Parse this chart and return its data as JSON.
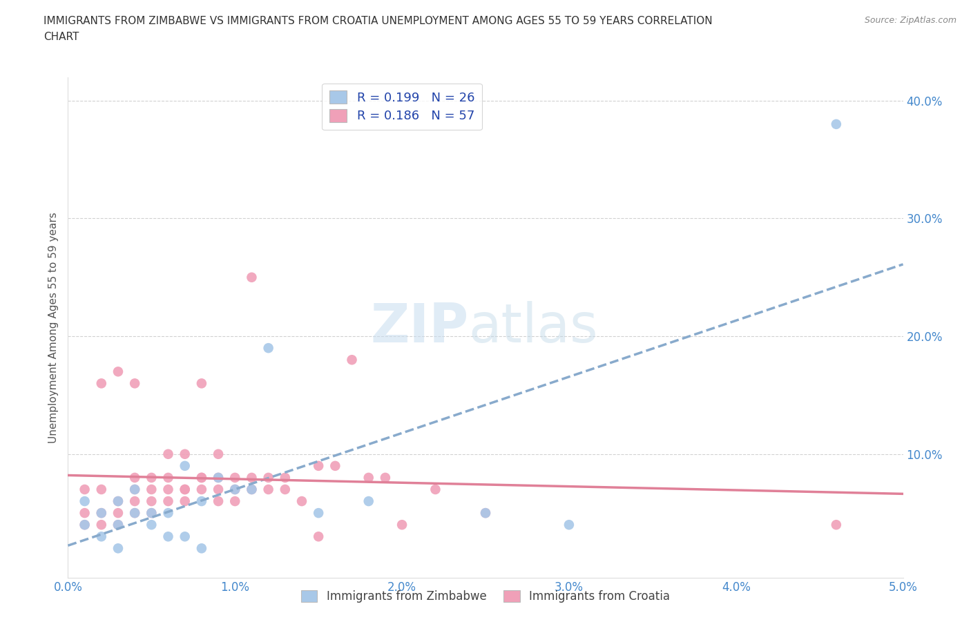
{
  "title_line1": "IMMIGRANTS FROM ZIMBABWE VS IMMIGRANTS FROM CROATIA UNEMPLOYMENT AMONG AGES 55 TO 59 YEARS CORRELATION",
  "title_line2": "CHART",
  "source": "Source: ZipAtlas.com",
  "ylabel": "Unemployment Among Ages 55 to 59 years",
  "xlim": [
    0.0,
    0.05
  ],
  "ylim": [
    -0.005,
    0.42
  ],
  "xticks": [
    0.0,
    0.01,
    0.02,
    0.03,
    0.04,
    0.05
  ],
  "xticklabels": [
    "0.0%",
    "1.0%",
    "2.0%",
    "3.0%",
    "4.0%",
    "5.0%"
  ],
  "yticks": [
    0.1,
    0.2,
    0.3,
    0.4
  ],
  "yticklabels": [
    "10.0%",
    "20.0%",
    "30.0%",
    "40.0%"
  ],
  "color_zimbabwe": "#a8c8e8",
  "color_croatia": "#f0a0b8",
  "color_zim_line": "#88aacc",
  "color_cro_line": "#e08098",
  "R_zimbabwe": 0.199,
  "N_zimbabwe": 26,
  "R_croatia": 0.186,
  "N_croatia": 57,
  "zimbabwe_x": [
    0.001,
    0.001,
    0.002,
    0.002,
    0.003,
    0.003,
    0.003,
    0.004,
    0.004,
    0.005,
    0.005,
    0.006,
    0.006,
    0.007,
    0.007,
    0.008,
    0.008,
    0.009,
    0.01,
    0.011,
    0.012,
    0.015,
    0.018,
    0.025,
    0.03,
    0.046
  ],
  "zimbabwe_y": [
    0.04,
    0.06,
    0.03,
    0.05,
    0.04,
    0.06,
    0.02,
    0.05,
    0.07,
    0.04,
    0.05,
    0.03,
    0.05,
    0.03,
    0.09,
    0.06,
    0.02,
    0.08,
    0.07,
    0.07,
    0.19,
    0.05,
    0.06,
    0.05,
    0.04,
    0.38
  ],
  "croatia_x": [
    0.001,
    0.001,
    0.001,
    0.002,
    0.002,
    0.002,
    0.002,
    0.003,
    0.003,
    0.003,
    0.003,
    0.004,
    0.004,
    0.004,
    0.004,
    0.004,
    0.005,
    0.005,
    0.005,
    0.005,
    0.006,
    0.006,
    0.006,
    0.006,
    0.007,
    0.007,
    0.007,
    0.007,
    0.008,
    0.008,
    0.008,
    0.008,
    0.009,
    0.009,
    0.009,
    0.009,
    0.01,
    0.01,
    0.01,
    0.011,
    0.011,
    0.011,
    0.012,
    0.012,
    0.013,
    0.013,
    0.014,
    0.015,
    0.015,
    0.016,
    0.017,
    0.018,
    0.019,
    0.02,
    0.022,
    0.025,
    0.046
  ],
  "croatia_y": [
    0.04,
    0.05,
    0.07,
    0.04,
    0.05,
    0.07,
    0.16,
    0.04,
    0.05,
    0.06,
    0.17,
    0.05,
    0.06,
    0.07,
    0.08,
    0.16,
    0.05,
    0.06,
    0.07,
    0.08,
    0.06,
    0.07,
    0.08,
    0.1,
    0.06,
    0.07,
    0.07,
    0.1,
    0.07,
    0.08,
    0.08,
    0.16,
    0.06,
    0.07,
    0.08,
    0.1,
    0.06,
    0.07,
    0.08,
    0.07,
    0.08,
    0.25,
    0.07,
    0.08,
    0.07,
    0.08,
    0.06,
    0.03,
    0.09,
    0.09,
    0.18,
    0.08,
    0.08,
    0.04,
    0.07,
    0.05,
    0.04
  ],
  "watermark_zip": "ZIP",
  "watermark_atlas": "atlas",
  "background_color": "#ffffff",
  "grid_color": "#cccccc",
  "legend_label_zim": "Immigrants from Zimbabwe",
  "legend_label_cro": "Immigrants from Croatia"
}
